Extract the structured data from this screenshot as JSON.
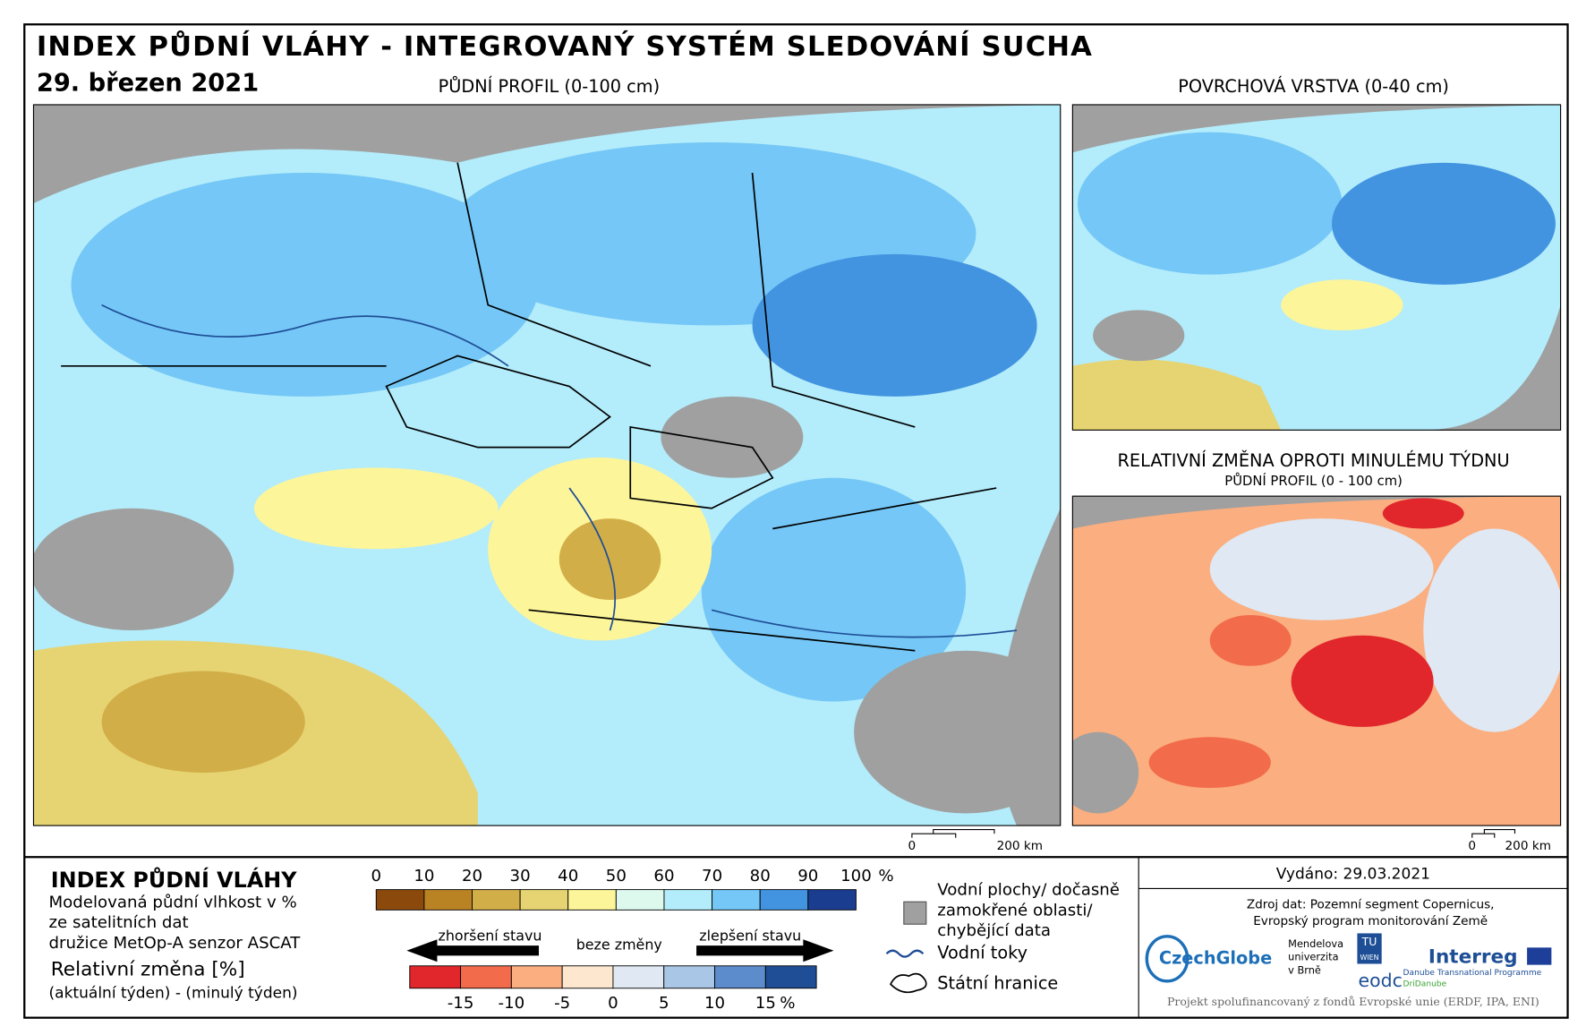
{
  "header": {
    "title": "INDEX PŮDNÍ VLÁHY - INTEGROVANÝ SYSTÉM SLEDOVÁNÍ SUCHA",
    "date": "29. březen 2021"
  },
  "panels": {
    "main": {
      "title": "PŮDNÍ PROFIL (0-100 cm)",
      "scale_start": "0",
      "scale_end": "200 km"
    },
    "surface": {
      "title": "POVRCHOVÁ VRSTVA (0-40 cm)"
    },
    "change": {
      "title": "RELATIVNÍ ZMĚNA OPROTI MINULÉMU TÝDNU",
      "subtitle": "PŮDNÍ PROFIL (0 - 100 cm)",
      "scale_start": "0",
      "scale_end": "200 km"
    }
  },
  "legend": {
    "title": "INDEX PŮDNÍ VLÁHY",
    "description": [
      "Modelovaná půdní vlhkost v %",
      "ze satelitních dat",
      "družice MetOp-A senzor ASCAT"
    ],
    "change_title": "Relativní změna [%]",
    "change_description": "(aktuální týden) - (minulý týden)",
    "moisture_ticks": [
      0,
      10,
      20,
      30,
      40,
      50,
      60,
      70,
      80,
      90,
      100
    ],
    "moisture_unit": "%",
    "moisture_colors": [
      "#8b4a0c",
      "#b98324",
      "#d2ae48",
      "#e6d472",
      "#fdf59a",
      "#ddf9ee",
      "#b3ecfb",
      "#74c7f6",
      "#4294e1",
      "#1b3d8f"
    ],
    "worse": "zhoršení stavu",
    "same": "beze změny",
    "better": "zlepšení stavu",
    "change_ticks": [
      -15,
      -10,
      -5,
      0,
      5,
      10,
      15
    ],
    "change_unit": "%",
    "change_colors": [
      "#e1262c",
      "#f26b4a",
      "#fbae7f",
      "#fde8cf",
      "#dfe8f3",
      "#a9c6e6",
      "#5c8ccc",
      "#1f4e96"
    ],
    "water_bodies": [
      "Vodní plochy/ dočasně",
      "zamokřené oblasti/",
      "chybějící data"
    ],
    "rivers": "Vodní toky",
    "borders": "Státní hranice"
  },
  "footer": {
    "issued": "Vydáno: 29.03.2021",
    "source": [
      "Zdroj dat: Pozemní segment Copernicus,",
      "Evropský program monitorování Země"
    ],
    "logos": [
      "CzechGlobe",
      "Mendelova",
      "univerzita",
      "v Brně",
      "TU",
      "WIEN",
      "eodc",
      "Interreg",
      "Danube Transnational Programme",
      "DriDanube"
    ],
    "funding": "Projekt spolufinancovaný z fondů Evropské unie (ERDF, IPA, ENI)"
  }
}
